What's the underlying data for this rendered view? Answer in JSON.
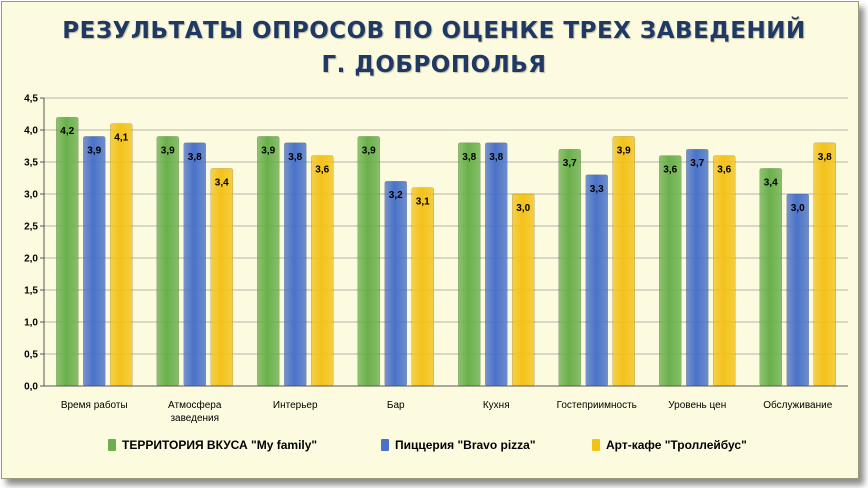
{
  "title_line1": "РЕЗУЛЬТАТЫ ОПРОСОВ ПО ОЦЕНКЕ ТРЕХ ЗАВЕДЕНИЙ",
  "title_line2": "Г. ДОБРОПОЛЬЯ",
  "chart_data": {
    "type": "bar",
    "categories": [
      "Время  работы",
      "Атмосфера\nзаведения",
      "Интерьер",
      "Бар",
      "Кухня",
      "Гостеприимность",
      "Уровень цен",
      "Обслуживание"
    ],
    "series": [
      {
        "name": "ТЕРРИТОРИЯ ВКУСА \"My family\"",
        "color": "#6ab04c",
        "values": [
          4.2,
          3.9,
          3.9,
          3.9,
          3.8,
          3.7,
          3.6,
          3.4
        ],
        "labels": [
          "4,2",
          "3,9",
          "3,9",
          "3,9",
          "3,8",
          "3,7",
          "3,6",
          "3,4"
        ]
      },
      {
        "name": "Пиццерия \"Bravo pizza\"",
        "color": "#4a72c8",
        "values": [
          3.9,
          3.8,
          3.8,
          3.2,
          3.8,
          3.3,
          3.7,
          3.0
        ],
        "labels": [
          "3,9",
          "3,8",
          "3,8",
          "3,2",
          "3,8",
          "3,3",
          "3,7",
          "3,0"
        ]
      },
      {
        "name": "Арт-кафе \"Троллейбус\"",
        "color": "#f3c21a",
        "values": [
          4.1,
          3.4,
          3.6,
          3.1,
          3.0,
          3.9,
          3.6,
          3.8
        ],
        "labels": [
          "4,1",
          "3,4",
          "3,6",
          "3,1",
          "3,0",
          "3,9",
          "3,6",
          "3,8"
        ]
      }
    ],
    "ylim": [
      0,
      4.5
    ],
    "yticks": [
      "0,0",
      "0,5",
      "1,0",
      "1,5",
      "2,0",
      "2,5",
      "3,0",
      "3,5",
      "4,0",
      "4,5"
    ],
    "grid": true,
    "legend_position": "bottom"
  }
}
